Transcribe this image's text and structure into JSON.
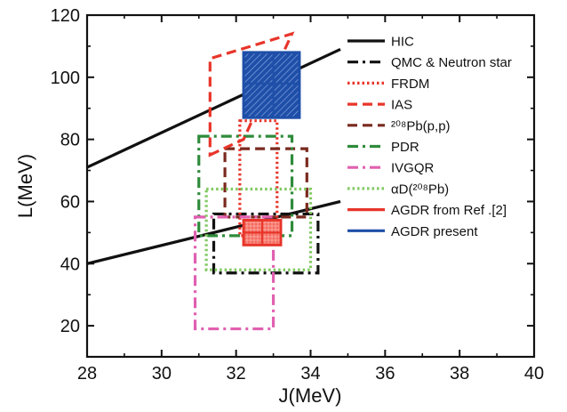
{
  "chart_data": {
    "type": "line",
    "xlabel": "J(MeV)",
    "ylabel": "L(MeV)",
    "xlim": [
      28,
      40
    ],
    "ylim": [
      10,
      120
    ],
    "xticks": [
      28,
      30,
      32,
      34,
      36,
      38,
      40
    ],
    "yticks": [
      20,
      40,
      60,
      80,
      100,
      120
    ],
    "grid": false,
    "legend_position": "top-right",
    "series": [
      {
        "name": "HIC",
        "kind": "band-lines",
        "color": "#111111",
        "dash": "solid",
        "lines": [
          [
            [
              28,
              71
            ],
            [
              34.8,
              109
            ]
          ],
          [
            [
              28,
              40
            ],
            [
              34.8,
              60
            ]
          ]
        ]
      },
      {
        "name": "QMC & Neutron star",
        "kind": "rect",
        "color": "#111111",
        "dash": "dashdot",
        "x": [
          31.4,
          34.2
        ],
        "y": [
          37,
          56
        ]
      },
      {
        "name": "FRDM",
        "kind": "rect",
        "color": "#e8352a",
        "dash": "dotted",
        "x": [
          32.1,
          33.1
        ],
        "y": [
          49,
          86
        ]
      },
      {
        "name": "IAS",
        "kind": "parallelogram",
        "color": "#e8352a",
        "dash": "dashed",
        "points": [
          [
            31.3,
            75
          ],
          [
            32.2,
            80
          ],
          [
            33.5,
            114
          ],
          [
            31.3,
            106
          ]
        ]
      },
      {
        "name": "²⁰⁸Pb(p,p)",
        "kind": "rect",
        "color": "#7a2a1f",
        "dash": "dashed",
        "x": [
          31.7,
          33.9
        ],
        "y": [
          55,
          77
        ]
      },
      {
        "name": "PDR",
        "kind": "rect",
        "color": "#2e8b3a",
        "dash": "dashdot",
        "x": [
          31.0,
          33.5
        ],
        "y": [
          49,
          81
        ]
      },
      {
        "name": "IVGQR",
        "kind": "rect",
        "color": "#e060b0",
        "dash": "dashdot",
        "x": [
          30.9,
          33.0
        ],
        "y": [
          19,
          55
        ]
      },
      {
        "name": "αD(²⁰⁸Pb)",
        "kind": "rect",
        "color": "#80c860",
        "dash": "dotted",
        "x": [
          31.2,
          34.0
        ],
        "y": [
          38,
          64
        ]
      },
      {
        "name": "AGDR from Ref .[2]",
        "kind": "filled-rect",
        "color": "#e8352a",
        "dash": "solid",
        "x": [
          32.2,
          33.2
        ],
        "y": [
          46,
          54
        ],
        "center": [
          32.7,
          50.0
        ]
      },
      {
        "name": "AGDR present",
        "kind": "filled-rect",
        "color": "#1f4fa8",
        "dash": "solid",
        "x": [
          32.2,
          33.7
        ],
        "y": [
          87,
          108
        ],
        "center": [
          33.0,
          98.0
        ]
      }
    ]
  }
}
